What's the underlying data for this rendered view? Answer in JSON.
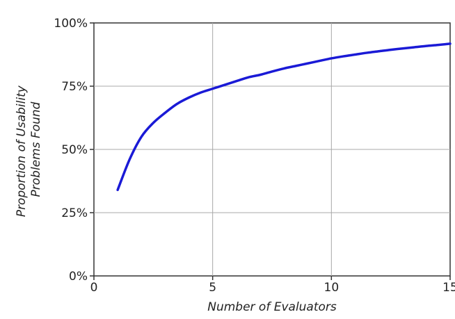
{
  "chart_data": {
    "type": "line",
    "xlabel": "Number of Evaluators",
    "ylabel_lines": [
      "Proportion of Usability",
      "Problems Found"
    ],
    "xlim": [
      0,
      15
    ],
    "ylim": [
      0,
      100
    ],
    "grid": true,
    "x_ticks": [
      0,
      5,
      10,
      15
    ],
    "x_tick_labels": [
      "0",
      "5",
      "10",
      "15"
    ],
    "y_ticks": [
      0,
      25,
      50,
      75,
      100
    ],
    "y_tick_labels": [
      "0%",
      "25%",
      "50%",
      "75%",
      "100%"
    ],
    "series": [
      {
        "color": "#1a1ad6",
        "x": [
          1,
          1.5,
          2,
          2.5,
          3,
          3.5,
          4,
          4.5,
          5,
          5.5,
          6,
          6.5,
          7,
          7.5,
          8,
          8.5,
          9,
          9.5,
          10,
          10.5,
          11,
          11.5,
          12,
          12.5,
          13,
          13.5,
          14,
          14.5,
          15
        ],
        "y": [
          34,
          46,
          55,
          60.5,
          64.5,
          68,
          70.5,
          72.5,
          74,
          75.5,
          77,
          78.5,
          79.5,
          80.8,
          82,
          83,
          84,
          85,
          86,
          86.8,
          87.5,
          88.2,
          88.8,
          89.4,
          89.9,
          90.4,
          90.9,
          91.3,
          91.8
        ]
      }
    ]
  }
}
